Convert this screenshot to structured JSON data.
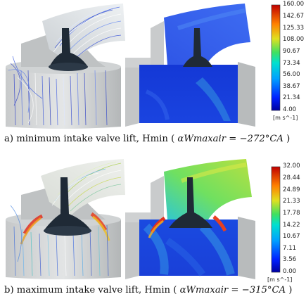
{
  "panel_a": {
    "caption_prefix": "a) minimum intake valve lift, Hmin ( ",
    "caption_math": "αWmaxair = −272°CA",
    "caption_suffix": " )",
    "colorbar": {
      "ticks": [
        "160.00",
        "142.67",
        "125.33",
        "108.00",
        "90.67",
        "73.34",
        "56.00",
        "38.67",
        "21.34",
        "4.00"
      ],
      "unit": "[m s^-1]"
    }
  },
  "panel_b": {
    "caption_prefix": "b) maximum intake valve lift, Hmin ( ",
    "caption_math": "αWmaxair = −315°CA",
    "caption_suffix": " )",
    "colorbar": {
      "ticks": [
        "32.00",
        "28.44",
        "24.89",
        "21.33",
        "17.78",
        "14.22",
        "10.67",
        "7.11",
        "3.56",
        "0.00"
      ],
      "unit": "[m s^-1]"
    }
  },
  "colors": {
    "cylinder_grey": "#b9bcbd",
    "cylinder_light": "#dcdfe0",
    "valve_dark": "#1f2a36",
    "field_blue": "#2040d8"
  }
}
